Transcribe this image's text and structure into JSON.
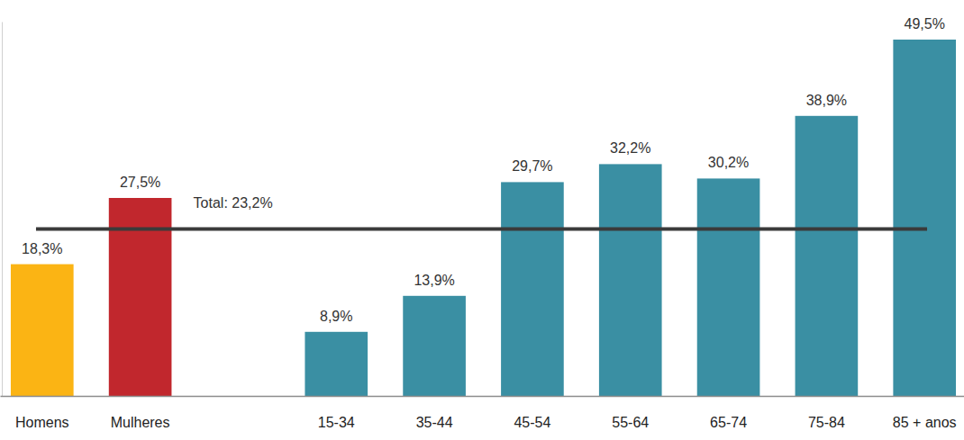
{
  "chart_data": {
    "type": "bar",
    "categories": [
      "Homens",
      "Mulheres",
      null,
      "15-34",
      "35-44",
      "45-54",
      "55-64",
      "65-74",
      "75-84",
      "85 + anos"
    ],
    "values": [
      18.3,
      27.5,
      null,
      8.9,
      13.9,
      29.7,
      32.2,
      30.2,
      38.9,
      49.5
    ],
    "value_labels": [
      "18,3%",
      "27,5%",
      null,
      "8,9%",
      "13,9%",
      "29,7%",
      "32,2%",
      "30,2%",
      "38,9%",
      "49,5%"
    ],
    "colors": [
      "#fbb414",
      "#c1272d",
      null,
      "#3a8fa3",
      "#3a8fa3",
      "#3a8fa3",
      "#3a8fa3",
      "#3a8fa3",
      "#3a8fa3",
      "#3a8fa3"
    ],
    "annotations": [
      {
        "text": "Total: 23,2%",
        "value": 23.2
      }
    ],
    "ylim": [
      0,
      52
    ],
    "grid": false,
    "data_labels": true,
    "tick_labels": "x"
  }
}
